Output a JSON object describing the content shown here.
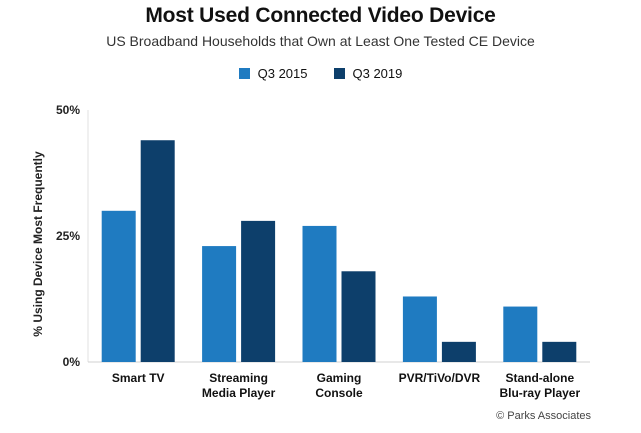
{
  "chart_data": {
    "type": "bar",
    "title": "Most Used Connected Video Device",
    "subtitle": "US Broadband Households that Own at Least One Tested CE Device",
    "ylabel": "% Using Device Most Frequently",
    "ylim": [
      0,
      50
    ],
    "yticks": [
      {
        "value": 0,
        "label": "0%"
      },
      {
        "value": 25,
        "label": "25%"
      },
      {
        "value": 50,
        "label": "50%"
      }
    ],
    "categories": [
      [
        "Smart TV"
      ],
      [
        "Streaming",
        "Media Player"
      ],
      [
        "Gaming",
        "Console"
      ],
      [
        "PVR/TiVo/DVR"
      ],
      [
        "Stand-alone",
        "Blu-ray Player"
      ]
    ],
    "series": [
      {
        "name": "Q3 2015",
        "color": "#1f7bc1",
        "values": [
          30,
          23,
          27,
          13,
          11
        ]
      },
      {
        "name": "Q3 2019",
        "color": "#0d3f6b",
        "values": [
          44,
          28,
          18,
          4,
          4
        ]
      }
    ],
    "legend": "top-center",
    "grid": false,
    "source": "© Parks Associates"
  }
}
